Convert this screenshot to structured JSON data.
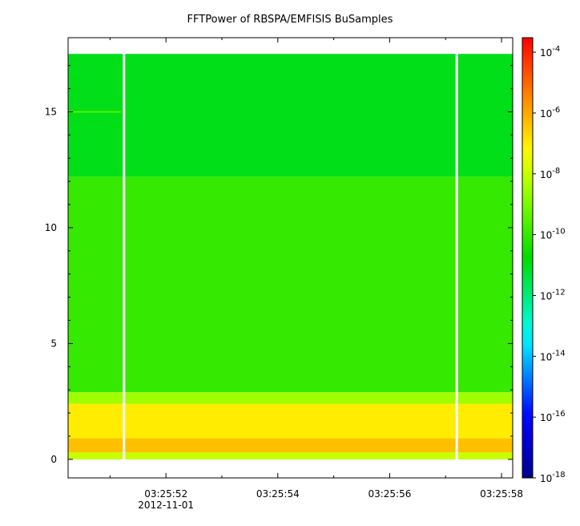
{
  "chart_data": {
    "type": "heatmap",
    "title": "FFTPower of RBSPA/EMFISIS  BuSamples",
    "xlabel": "",
    "ylabel": "",
    "x_axis": {
      "type": "time",
      "date_label": "2012-11-01",
      "range": [
        "03:25:50.25",
        "03:25:58.2"
      ],
      "ticks": [
        "03:25:52",
        "03:25:54",
        "03:25:56",
        "03:25:58"
      ],
      "tick_values_s": [
        52,
        54,
        56,
        58
      ]
    },
    "y_axis": {
      "range": [
        -0.8,
        18.2
      ],
      "ticks": [
        0,
        5,
        10,
        15
      ]
    },
    "colorbar": {
      "scale": "log",
      "range": [
        1e-18,
        0.0003
      ],
      "tick_exponents": [
        -4,
        -6,
        -8,
        -10,
        -12,
        -14,
        -16,
        -18
      ],
      "tick_base": "10"
    },
    "data_gaps_s": [
      51.25,
      57.2
    ],
    "regions": [
      {
        "y": [
          0.0,
          0.3
        ],
        "level_exp": -8
      },
      {
        "y": [
          0.3,
          2.4
        ],
        "level_exp": -7
      },
      {
        "y": [
          2.4,
          2.9
        ],
        "level_exp": -8.5
      },
      {
        "y": [
          2.9,
          12.2
        ],
        "level_exp": -10
      },
      {
        "y": [
          12.2,
          17.5
        ],
        "level_exp": -11
      }
    ],
    "features": [
      {
        "type": "line",
        "y": 15.0,
        "x_s": [
          50.25,
          51.2
        ],
        "level_exp": -9.5
      }
    ],
    "grid": false,
    "legend": "colorbar-right"
  }
}
